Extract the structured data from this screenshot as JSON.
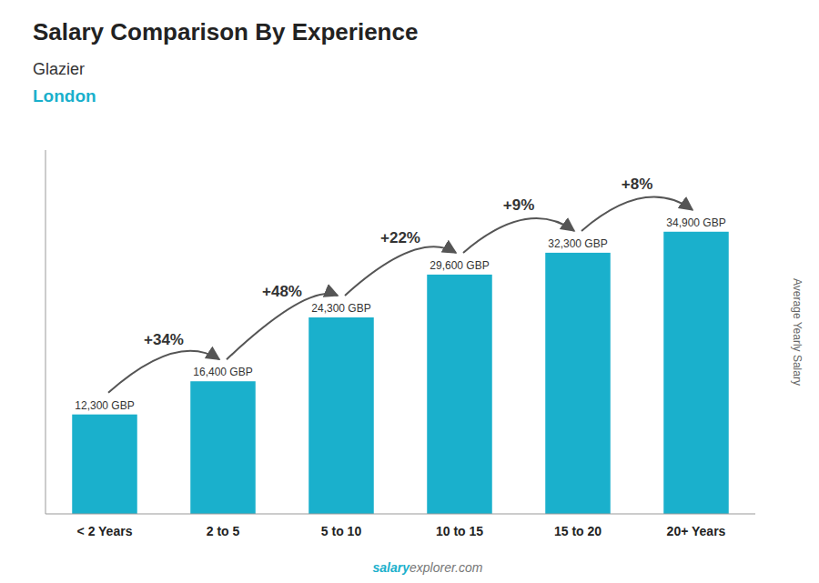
{
  "chart_data": {
    "type": "bar",
    "title": "Salary Comparison By Experience",
    "subtitle": [
      "Glazier",
      "London"
    ],
    "y_label": "Average Yearly Salary",
    "categories": [
      "< 2 Years",
      "2 to 5",
      "5 to 10",
      "10 to 15",
      "15 to 20",
      "20+ Years"
    ],
    "values": [
      12300,
      16400,
      24300,
      29600,
      32300,
      34900
    ],
    "value_labels": [
      "12,300 GBP",
      "16,400 GBP",
      "24,300 GBP",
      "29,600 GBP",
      "32,300 GBP",
      "34,900 GBP"
    ],
    "data_labels": true,
    "color": "#1ab0cc",
    "annotations": [
      "+34%",
      "+48%",
      "+22%",
      "+9%",
      "+8%"
    ],
    "watermark": [
      "salary",
      "explorer.com"
    ],
    "ylim": [
      0,
      45000
    ],
    "tick_labels": "x",
    "grid": false
  }
}
